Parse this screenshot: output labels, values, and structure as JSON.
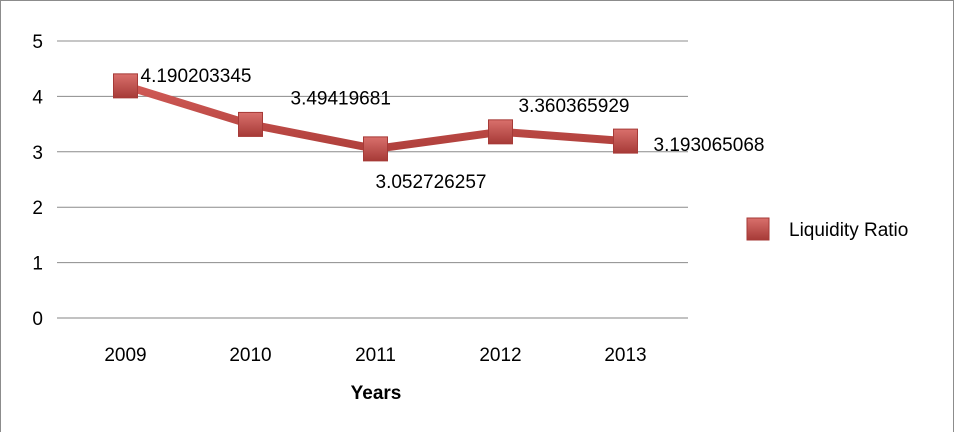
{
  "chart_data": {
    "type": "line",
    "categories": [
      "2009",
      "2010",
      "2011",
      "2012",
      "2013"
    ],
    "series": [
      {
        "name": "Liquidity Ratio",
        "values": [
          4.190203345,
          3.49419681,
          3.052726257,
          3.360365929,
          3.193065068
        ],
        "labels": [
          "4.190203345",
          "3.49419681",
          "3.052726257",
          "3.360365929",
          "3.193065068"
        ],
        "color": "#c0504d"
      }
    ],
    "y_ticks": [
      "0",
      "1",
      "2",
      "3",
      "4",
      "5"
    ],
    "xlabel": "Years",
    "ylabel": "",
    "ylim": [
      0,
      5
    ],
    "grid": true,
    "legend_position": "right"
  }
}
